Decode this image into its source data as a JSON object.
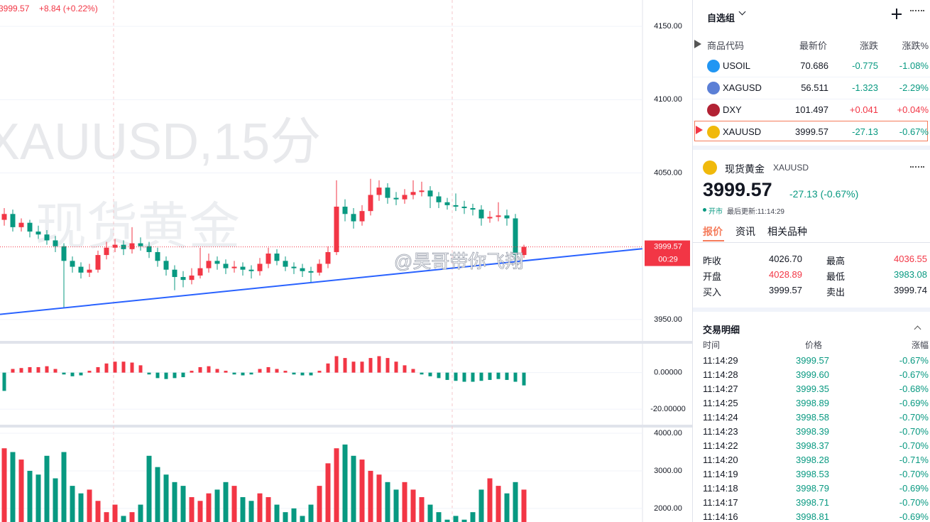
{
  "chart_data": {
    "type": "candlestick",
    "legend_change": "+8.84 (+0.22%)",
    "watermark": [
      "XAUUSD,15分",
      "现货黄金"
    ],
    "annotation": "@昊哥带你飞翔",
    "countdown": "00:29",
    "up_color": "#f23645",
    "down_color": "#089981",
    "ylim": [
      3935.4,
      4168
    ],
    "yticks": [
      {
        "value": 3950,
        "label": "3950.00"
      },
      {
        "value": 4050,
        "label": "4050.00"
      },
      {
        "value": 4100,
        "label": "4100.00"
      },
      {
        "value": 4150,
        "label": "4150.00"
      }
    ],
    "ohlc": [
      [
        4018,
        4026,
        4014,
        4022
      ],
      [
        4022,
        4025,
        4010,
        4013
      ],
      [
        4013,
        4019,
        4010,
        4016
      ],
      [
        4016,
        4018,
        4006,
        4010
      ],
      [
        4010,
        4014,
        4005,
        4008
      ],
      [
        4008,
        4011,
        4001,
        4004
      ],
      [
        4004,
        4007,
        3996,
        4000
      ],
      [
        4000,
        4002,
        3958,
        3990
      ],
      [
        3990,
        3993,
        3982,
        3986
      ],
      [
        3986,
        3989,
        3978,
        3982
      ],
      [
        3982,
        3988,
        3979,
        3984
      ],
      [
        3984,
        3997,
        3982,
        3994
      ],
      [
        3994,
        4003,
        3991,
        3999
      ],
      [
        3999,
        4005,
        3996,
        4001
      ],
      [
        4001,
        4004,
        3994,
        3998
      ],
      [
        3998,
        4013,
        3995,
        4002
      ],
      [
        4002,
        4006,
        3997,
        4000
      ],
      [
        4000,
        4003,
        3992,
        3996
      ],
      [
        3996,
        3999,
        3986,
        3990
      ],
      [
        3990,
        3993,
        3980,
        3984
      ],
      [
        3984,
        3987,
        3970,
        3979
      ],
      [
        3979,
        3983,
        3972,
        3977
      ],
      [
        3977,
        3985,
        3974,
        3980
      ],
      [
        3980,
        3999,
        3978,
        3985
      ],
      [
        3985,
        3995,
        3982,
        3990
      ],
      [
        3990,
        3993,
        3984,
        3988
      ],
      [
        3988,
        3991,
        3981,
        3985
      ],
      [
        3985,
        3990,
        3982,
        3986
      ],
      [
        3986,
        3989,
        3980,
        3984
      ],
      [
        3984,
        3987,
        3978,
        3983
      ],
      [
        3983,
        3992,
        3980,
        3988
      ],
      [
        3988,
        3999,
        3985,
        3995
      ],
      [
        3995,
        3998,
        3987,
        3990
      ],
      [
        3990,
        3993,
        3983,
        3986
      ],
      [
        3986,
        3989,
        3981,
        3985
      ],
      [
        3985,
        3988,
        3979,
        3983
      ],
      [
        3983,
        3986,
        3975,
        3982
      ],
      [
        3982,
        3991,
        3980,
        3988
      ],
      [
        3988,
        4000,
        3985,
        3996
      ],
      [
        3996,
        4045,
        3994,
        4027
      ],
      [
        4027,
        4032,
        4017,
        4022
      ],
      [
        4022,
        4026,
        4012,
        4017
      ],
      [
        4017,
        4028,
        4014,
        4024
      ],
      [
        4024,
        4046,
        4021,
        4035
      ],
      [
        4035,
        4045,
        4031,
        4040
      ],
      [
        4040,
        4043,
        4029,
        4033
      ],
      [
        4033,
        4037,
        4028,
        4032
      ],
      [
        4032,
        4039,
        4029,
        4035
      ],
      [
        4035,
        4045,
        4032,
        4037
      ],
      [
        4037,
        4044,
        4034,
        4038
      ],
      [
        4038,
        4041,
        4026,
        4034
      ],
      [
        4034,
        4037,
        4026,
        4030
      ],
      [
        4030,
        4033,
        4025,
        4028
      ],
      [
        4028,
        4036,
        4024,
        4027
      ],
      [
        4027,
        4031,
        4022,
        4026
      ],
      [
        4026,
        4029,
        4021,
        4025
      ],
      [
        4025,
        4028,
        4014,
        4019
      ],
      [
        4019,
        4024,
        4016,
        4020
      ],
      [
        4020,
        4030,
        4017,
        4021
      ],
      [
        4021,
        4025,
        4014,
        4019
      ],
      [
        4019,
        4022,
        3990,
        3994
      ],
      [
        3994,
        4001,
        3992,
        3999.57
      ]
    ],
    "trend_line": {
      "index": [
        -0.5,
        74.9
      ],
      "values": [
        3953.5,
        3998.3
      ],
      "color": "#2962ff"
    },
    "macd": {
      "ylim": [
        -28.5,
        15.8
      ],
      "yticks": [
        {
          "value": 0,
          "label": "0.00000"
        },
        {
          "value": -20,
          "label": "-20.00000"
        }
      ],
      "values": [
        -10,
        2,
        2.5,
        3,
        3,
        3.5,
        2,
        -1,
        -2,
        -1.5,
        1,
        3,
        5,
        6,
        6,
        5.5,
        4,
        -1,
        -3,
        -3.5,
        -3,
        -2.5,
        1,
        3,
        3.5,
        2,
        1,
        -1,
        -1.5,
        -1,
        2,
        3,
        2,
        1,
        -1,
        -1.5,
        -1.5,
        1,
        5,
        9,
        8,
        6,
        6,
        8,
        9,
        8,
        6,
        4,
        2,
        -1,
        -2,
        -3,
        -4,
        -4.5,
        -5,
        -5,
        -4.5,
        -4,
        -3.5,
        -4,
        -5,
        -7
      ]
    },
    "volume": {
      "ylim": [
        1638,
        4152
      ],
      "yticks": [
        {
          "value": 2000,
          "label": "2000.00"
        },
        {
          "value": 3000,
          "label": "3000.00"
        },
        {
          "value": 4000,
          "label": "4000.00"
        }
      ],
      "values": [
        3600,
        3500,
        3300,
        3000,
        2900,
        3400,
        2800,
        3500,
        2600,
        2400,
        2500,
        2200,
        1900,
        2100,
        1800,
        1900,
        2100,
        3400,
        3100,
        2900,
        2700,
        2600,
        2300,
        2200,
        2400,
        2500,
        2700,
        2600,
        2300,
        2200,
        2400,
        2300,
        2100,
        1900,
        2000,
        1800,
        2100,
        2600,
        3200,
        3600,
        3700,
        3400,
        3300,
        3000,
        2900,
        2700,
        2500,
        2700,
        2500,
        2300,
        2100,
        1900,
        1700,
        1800,
        1700,
        1900,
        2500,
        2800,
        2600,
        2400,
        2700,
        2500
      ]
    }
  },
  "watchlist": {
    "title": "自选组",
    "columns": [
      "商品代码",
      "最新价",
      "涨跌",
      "涨跌%"
    ],
    "rows": [
      [
        "USOIL",
        "70.686",
        "-0.775",
        "-1.08%"
      ],
      [
        "XAGUSD",
        "56.511",
        "-1.323",
        "-2.29%"
      ],
      [
        "DXY",
        "101.497",
        "+0.041",
        "+0.04%"
      ],
      [
        "XAUUSD",
        "3999.57",
        "-27.13",
        "-0.67%"
      ]
    ]
  },
  "quote": {
    "name": "现货黄金",
    "symbol": "XAUUSD",
    "price": "3999.57",
    "change": "-27.13 (-0.67%)",
    "status": "开市",
    "updated": "最后更新:11:14:29",
    "tabs": [
      "报价",
      "资讯",
      "相关品种"
    ],
    "stats": [
      [
        "昨收",
        "4026.70",
        "最高",
        "4036.55"
      ],
      [
        "开盘",
        "4028.89",
        "最低",
        "3983.08"
      ],
      [
        "买入",
        "3999.57",
        "卖出",
        "3999.74"
      ]
    ]
  },
  "trades": {
    "title": "交易明细",
    "columns": [
      "时间",
      "价格",
      "涨幅"
    ],
    "rows": [
      [
        "11:14:29",
        "3999.57",
        "-0.67%"
      ],
      [
        "11:14:28",
        "3999.60",
        "-0.67%"
      ],
      [
        "11:14:27",
        "3999.35",
        "-0.68%"
      ],
      [
        "11:14:25",
        "3998.89",
        "-0.69%"
      ],
      [
        "11:14:24",
        "3998.58",
        "-0.70%"
      ],
      [
        "11:14:23",
        "3998.39",
        "-0.70%"
      ],
      [
        "11:14:22",
        "3998.37",
        "-0.70%"
      ],
      [
        "11:14:20",
        "3998.28",
        "-0.71%"
      ],
      [
        "11:14:19",
        "3998.53",
        "-0.70%"
      ],
      [
        "11:14:18",
        "3998.79",
        "-0.69%"
      ],
      [
        "11:14:17",
        "3998.71",
        "-0.70%"
      ],
      [
        "11:14:16",
        "3998.81",
        "-0.69%"
      ]
    ]
  }
}
